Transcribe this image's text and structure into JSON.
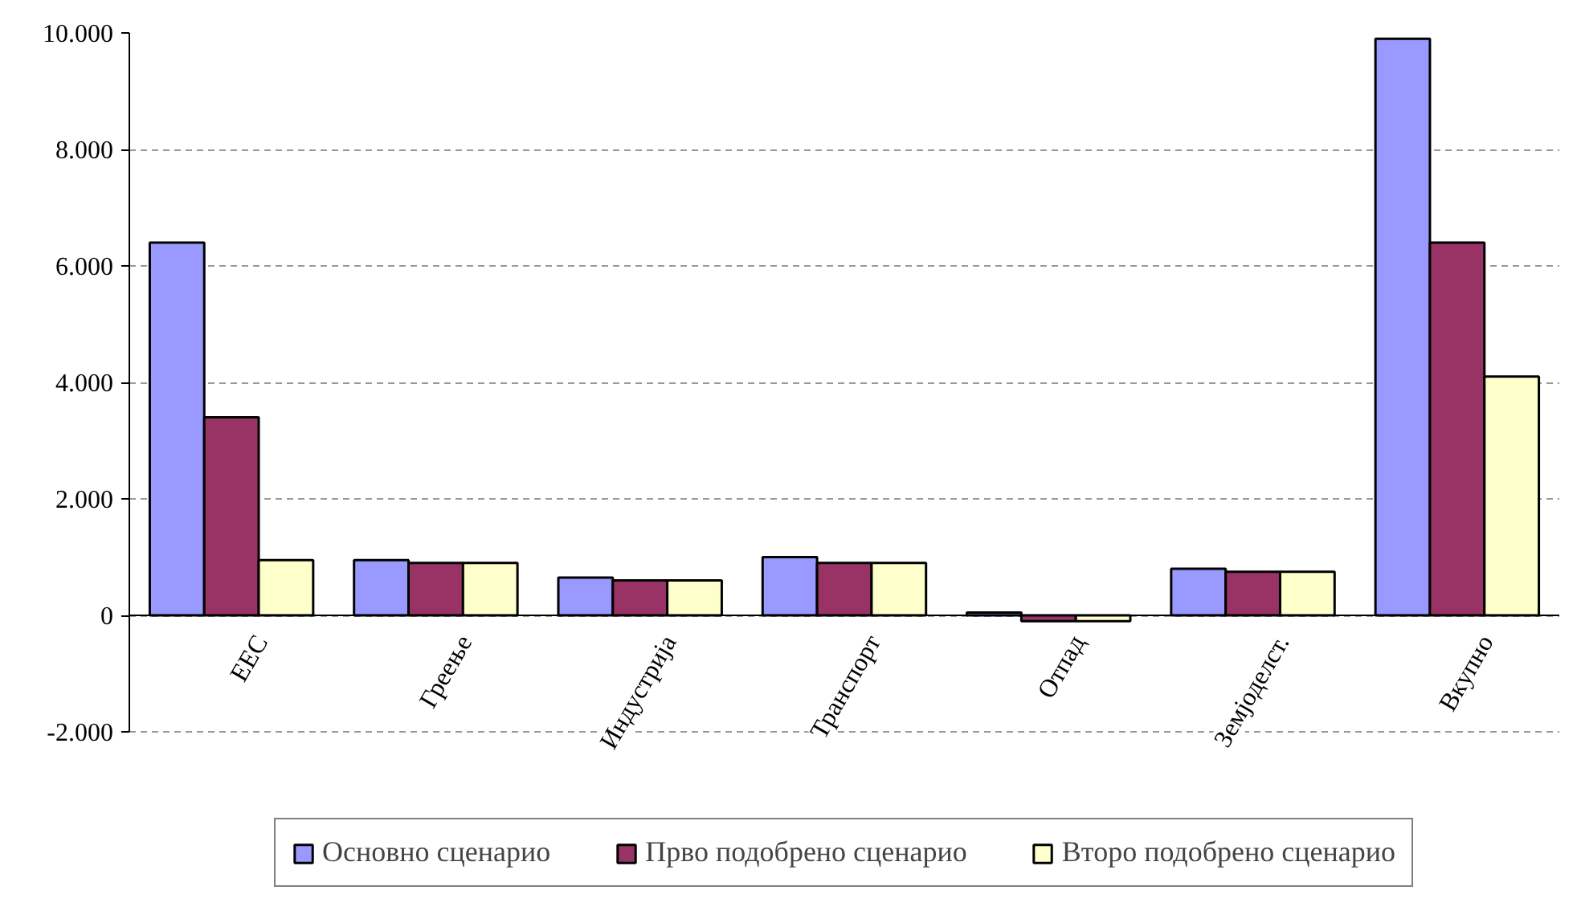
{
  "chart_data": {
    "type": "bar",
    "categories": [
      "ЕЕС",
      "Греење",
      "Индустрија",
      "Транспорт",
      "Отпад",
      "Земјоделст.",
      "Вкупно"
    ],
    "series": [
      {
        "name": "Основно сценарио",
        "color": "#9999ff",
        "values": [
          6400,
          950,
          650,
          1000,
          50,
          800,
          9900
        ]
      },
      {
        "name": "Прво подобрено сценарио",
        "color": "#993366",
        "values": [
          3400,
          900,
          600,
          900,
          -100,
          750,
          6400
        ]
      },
      {
        "name": "Второ подобрено сценарио",
        "color": "#ffffcc",
        "values": [
          950,
          900,
          600,
          900,
          -100,
          750,
          4100
        ]
      }
    ],
    "ylim": [
      -2000,
      10000
    ],
    "yticks": [
      {
        "value": -2000,
        "label": "-2.000"
      },
      {
        "value": 0,
        "label": "0"
      },
      {
        "value": 2000,
        "label": "2.000"
      },
      {
        "value": 4000,
        "label": "4.000"
      },
      {
        "value": 6000,
        "label": "6.000"
      },
      {
        "value": 8000,
        "label": "8.000"
      },
      {
        "value": 10000,
        "label": "10.000"
      }
    ],
    "grid": "y",
    "legend": "bottom"
  }
}
